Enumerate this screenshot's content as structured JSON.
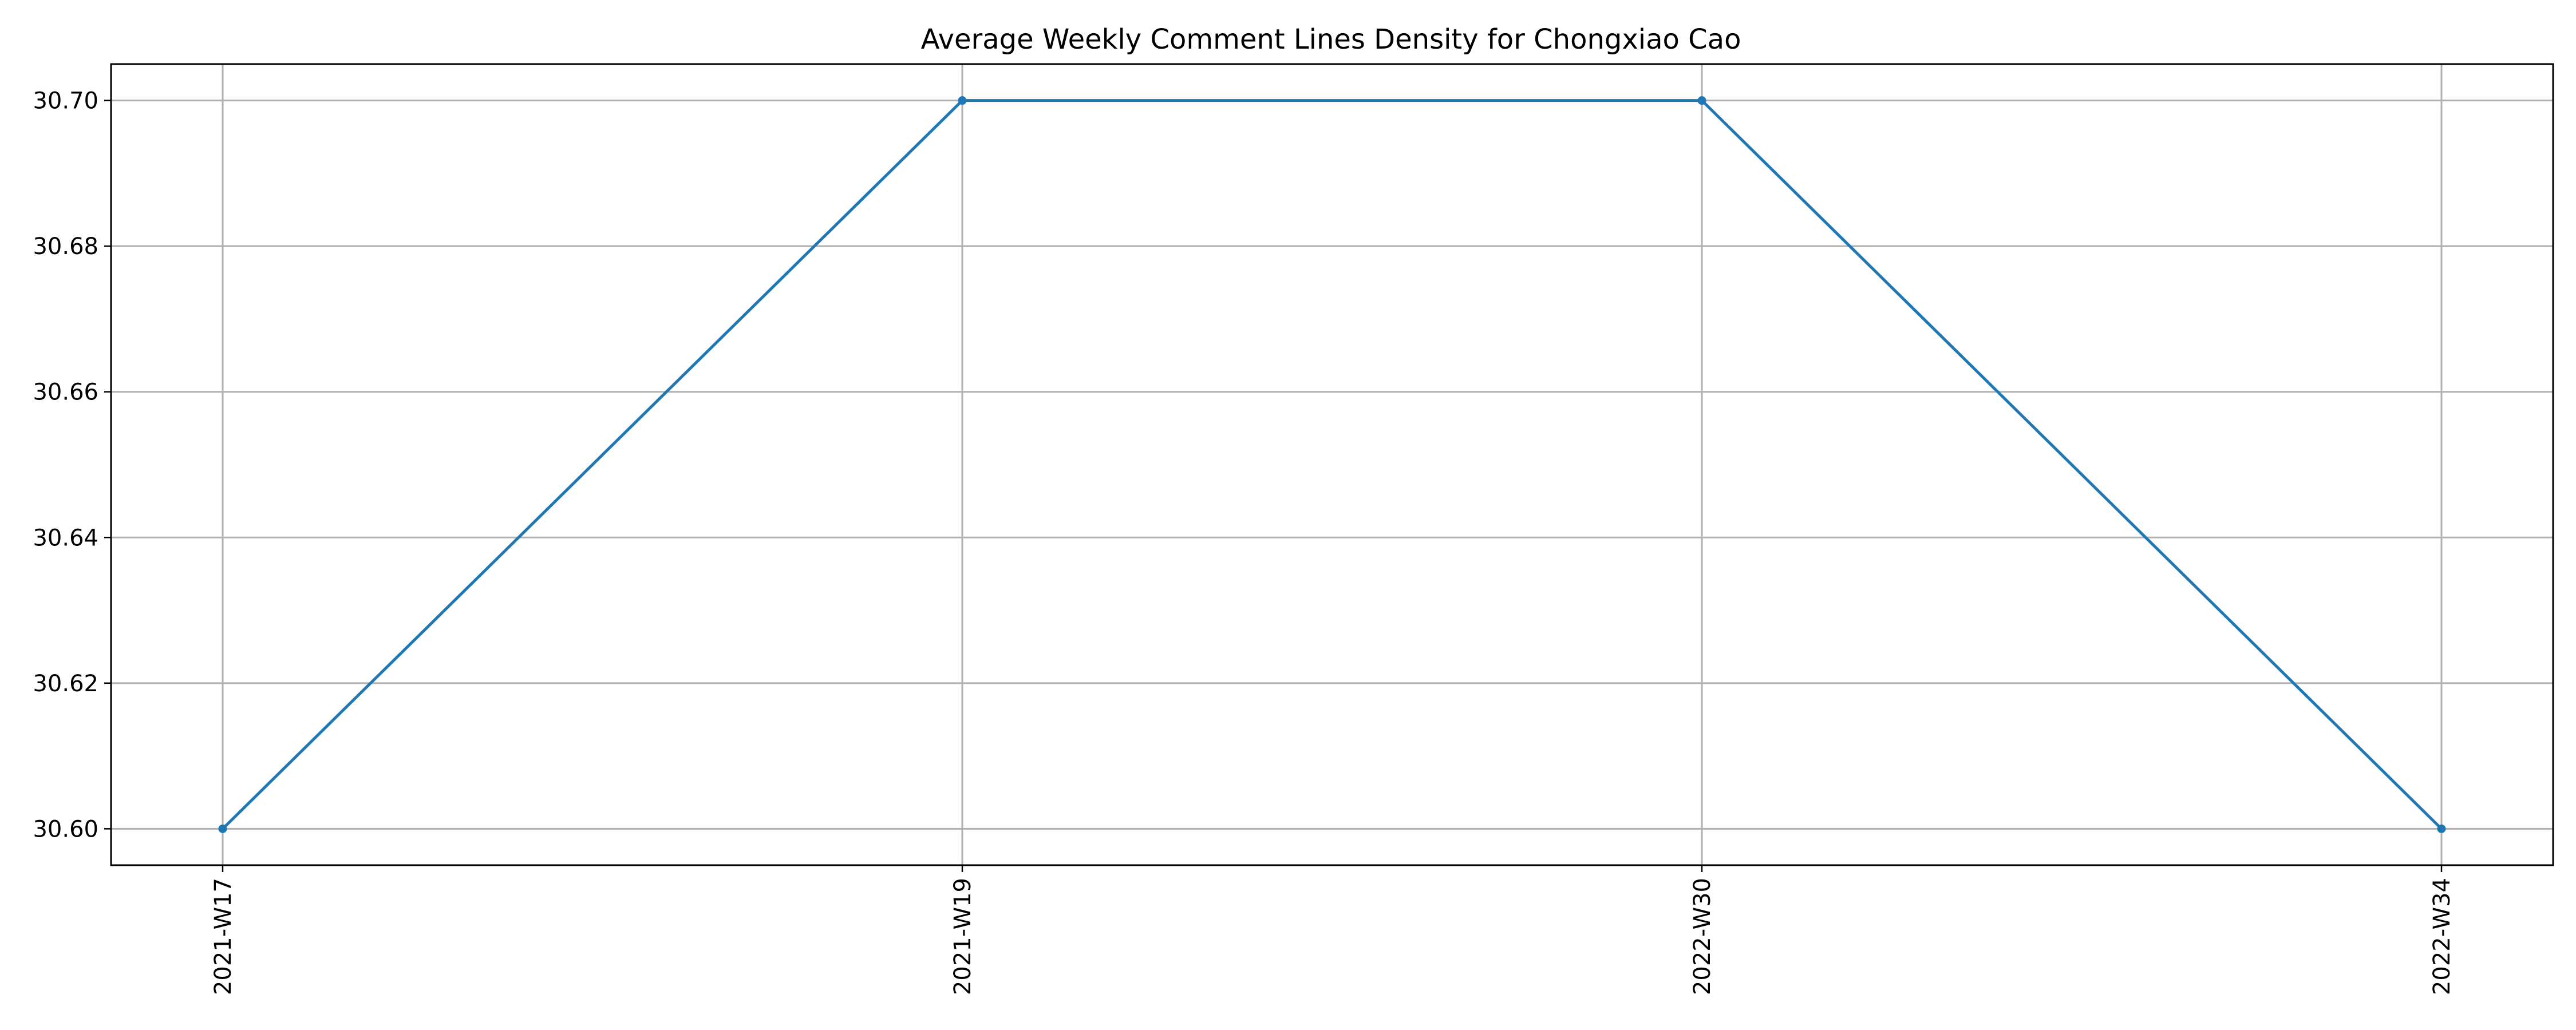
{
  "chart_data": {
    "type": "line",
    "title": "Average Weekly Comment Lines Density for Chongxiao Cao",
    "xlabel": "",
    "ylabel": "",
    "categories": [
      "2021-W17",
      "2021-W19",
      "2022-W30",
      "2022-W34"
    ],
    "series": [
      {
        "values": [
          30.6,
          30.7,
          30.7,
          30.6
        ],
        "color": "#1f77b4",
        "marker": "circle"
      }
    ],
    "y_ticks": [
      "30.60",
      "30.62",
      "30.64",
      "30.66",
      "30.68",
      "30.70"
    ],
    "ylim": [
      30.595,
      30.705
    ],
    "grid": true,
    "x_tick_rotation": "vertical",
    "legend": "none"
  }
}
